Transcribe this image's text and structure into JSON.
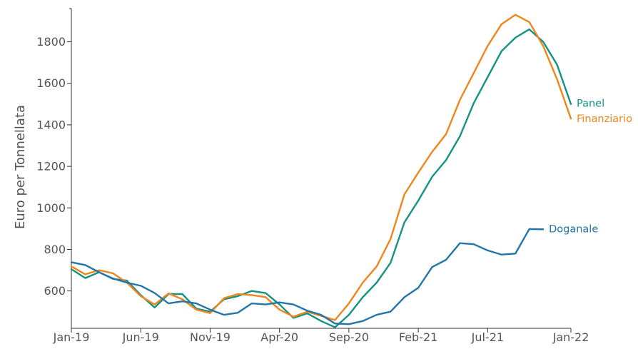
{
  "chart_data": {
    "type": "line",
    "ylabel": "Euro per Tonnellata",
    "ylim": [
      420,
      1960
    ],
    "y_ticks": [
      600,
      800,
      1000,
      1200,
      1400,
      1600,
      1800
    ],
    "x_start": "Jan-19",
    "x_end": "Jan-22",
    "x_tick_labels": [
      "Jan-19",
      "Jun-19",
      "Nov-19",
      "Apr-20",
      "Sep-20",
      "Feb-21",
      "Jul-21",
      "Jan-22"
    ],
    "x_tick_month_index": [
      0,
      5,
      10,
      15,
      20,
      25,
      30,
      36
    ],
    "grid": false,
    "legend": "inline labels at right end of lines",
    "series": [
      {
        "name": "Panel",
        "color": "#129383",
        "label_y": 1505,
        "values": [
          705,
          662,
          690,
          658,
          650,
          580,
          520,
          585,
          585,
          515,
          500,
          560,
          575,
          600,
          590,
          535,
          470,
          492,
          455,
          425,
          485,
          570,
          640,
          735,
          930,
          1035,
          1150,
          1230,
          1345,
          1505,
          1630,
          1755,
          1820,
          1860,
          1800,
          1690,
          1500
        ]
      },
      {
        "name": "Finanziario",
        "color": "#f0861b",
        "label_y": 1430,
        "values": [
          718,
          680,
          700,
          685,
          640,
          575,
          535,
          588,
          560,
          510,
          493,
          565,
          585,
          580,
          570,
          510,
          476,
          500,
          480,
          460,
          540,
          640,
          718,
          850,
          1065,
          1170,
          1270,
          1355,
          1520,
          1650,
          1780,
          1885,
          1930,
          1895,
          1780,
          1620,
          1430
        ]
      },
      {
        "name": "Doganale",
        "color": "#2275a9",
        "label_y": 900,
        "values": [
          738,
          725,
          690,
          660,
          640,
          625,
          590,
          540,
          550,
          540,
          510,
          485,
          495,
          540,
          535,
          545,
          535,
          505,
          485,
          443,
          440,
          455,
          485,
          500,
          570,
          615,
          715,
          750,
          830,
          825,
          795,
          775,
          780,
          898,
          897
        ]
      }
    ]
  }
}
